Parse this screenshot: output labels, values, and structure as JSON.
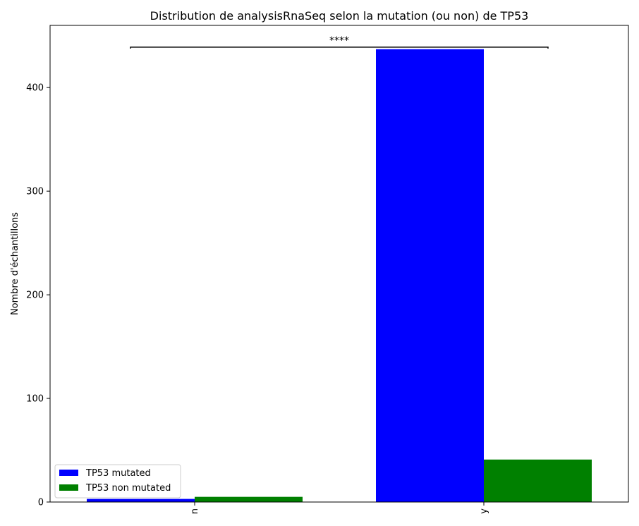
{
  "chart_data": {
    "type": "bar",
    "title": "Distribution de analysisRnaSeq selon la mutation (ou non) de TP53",
    "xlabel": "",
    "ylabel": "Nombre d'échantillons",
    "categories": [
      "n",
      "y"
    ],
    "series": [
      {
        "name": "TP53 mutated",
        "values": [
          3,
          437
        ],
        "color": "#0000ff"
      },
      {
        "name": "TP53 non mutated",
        "values": [
          5,
          41
        ],
        "color": "#008000"
      }
    ],
    "ylim": [
      0,
      460
    ],
    "yticks": [
      0,
      100,
      200,
      300,
      400
    ],
    "grid": false,
    "legend_position": "lower-left",
    "annotation": {
      "text": "****",
      "y": 439
    }
  }
}
